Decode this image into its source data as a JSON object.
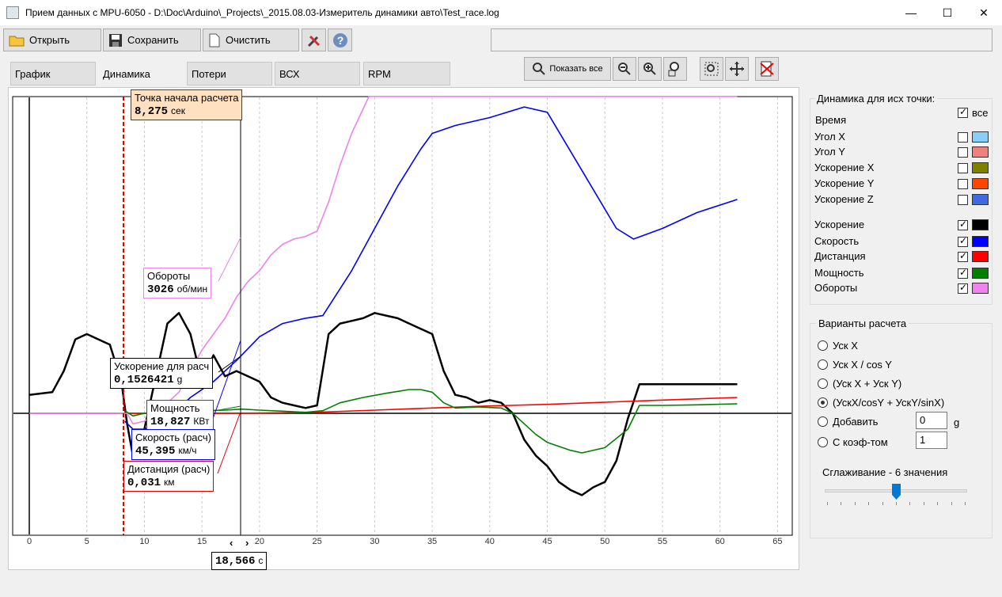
{
  "window": {
    "title": "Прием данных с MPU-6050 - D:\\Doc\\Arduino\\_Projects\\_2015.08.03-Измеритель динамики авто\\Test_race.log",
    "controls": [
      "minimize-icon",
      "maximize-icon",
      "close-icon"
    ]
  },
  "toolbar": {
    "open_label": "Открыть",
    "save_label": "Сохранить",
    "clear_label": "Очистить",
    "tools_icon": "tools-icon",
    "help_icon": "help-icon"
  },
  "tabs": [
    "График",
    "Динамика",
    "Потери",
    "ВСХ",
    "RPM"
  ],
  "active_tab": "Динамика",
  "zoom": {
    "show_all_label": "Показать все"
  },
  "plot": {
    "start_marker": {
      "title": "Точка начала расчета",
      "value": "8,275",
      "unit": "сек"
    },
    "cursor": {
      "value": "18,566",
      "unit": "с"
    },
    "labels": {
      "rpm": {
        "title": "Обороты",
        "value": "3026",
        "unit": "об/мин"
      },
      "accel": {
        "title": "Ускорение для расч",
        "value": "0,1526421",
        "unit": "g"
      },
      "power": {
        "title": "Мощность",
        "value": "18,827",
        "unit": "КВт"
      },
      "speed": {
        "title": "Скорость (расч)",
        "value": "45,395",
        "unit": "км/ч"
      },
      "distance": {
        "title": "Дистанция (расч)",
        "value": "0,031",
        "unit": "км"
      }
    },
    "x_ticks": [
      "0",
      "5",
      "10",
      "15",
      "20",
      "25",
      "30",
      "35",
      "40",
      "45",
      "50",
      "55",
      "60",
      "65"
    ]
  },
  "chart_data": {
    "type": "line",
    "title": "",
    "xlabel": "",
    "ylabel": "",
    "xlim": [
      -1.5,
      66
    ],
    "ylim": [
      -2,
      6
    ],
    "grid": true,
    "series": [
      {
        "name": "Ускорение",
        "color": "#000000",
        "x": [
          0,
          2,
          3,
          4,
          5,
          6,
          7,
          8,
          8.5,
          9,
          10,
          11,
          12,
          13,
          14,
          15,
          16,
          17,
          18,
          19,
          20,
          21,
          22,
          23,
          24,
          25,
          26,
          27,
          28,
          29,
          30,
          31,
          32,
          33,
          34,
          35,
          36,
          37,
          38,
          39,
          40,
          41,
          42,
          43,
          44,
          45,
          46,
          47,
          48,
          49,
          50,
          51,
          52,
          53,
          54,
          56,
          58,
          60,
          61.5
        ],
        "y": [
          0.35,
          0.4,
          0.8,
          1.4,
          1.5,
          1.4,
          1.3,
          0.6,
          -0.2,
          -0.8,
          -0.3,
          0.7,
          1.7,
          1.9,
          1.5,
          0.6,
          1.1,
          0.7,
          0.8,
          0.7,
          0.6,
          0.3,
          0.2,
          0.15,
          0.1,
          0.15,
          1.5,
          1.7,
          1.75,
          1.8,
          1.9,
          1.85,
          1.8,
          1.7,
          1.6,
          1.5,
          0.8,
          0.35,
          0.3,
          0.2,
          0.25,
          0.2,
          0.0,
          -0.5,
          -0.8,
          -1.0,
          -1.3,
          -1.45,
          -1.55,
          -1.4,
          -1.3,
          -0.9,
          -0.1,
          0.55,
          0.55,
          0.55,
          0.55,
          0.55,
          0.55
        ]
      },
      {
        "name": "Скорость",
        "color": "#0000ff",
        "x": [
          8.3,
          9,
          10,
          12,
          14,
          16,
          18,
          20,
          22,
          24,
          25.5,
          28,
          30,
          32,
          34,
          35,
          37,
          40,
          43,
          45,
          48,
          51,
          52.5,
          55,
          58,
          61.5
        ],
        "y": [
          -0.15,
          -0.3,
          -0.3,
          -0.1,
          0.3,
          0.6,
          1.0,
          1.45,
          1.7,
          1.8,
          1.85,
          2.7,
          3.5,
          4.3,
          5.0,
          5.3,
          5.45,
          5.6,
          5.8,
          5.7,
          4.6,
          3.5,
          3.3,
          3.5,
          3.8,
          4.05
        ]
      },
      {
        "name": "Дистанция",
        "color": "#ff0000",
        "x": [
          8.3,
          15,
          20,
          25,
          30,
          35,
          40,
          45,
          50,
          55,
          61.5
        ],
        "y": [
          0.0,
          0.0,
          0.005,
          0.02,
          0.06,
          0.1,
          0.14,
          0.17,
          0.21,
          0.25,
          0.3
        ]
      },
      {
        "name": "Мощность",
        "color": "#008000",
        "x": [
          8.3,
          9,
          10,
          11,
          13,
          15,
          17,
          18.5,
          20,
          22,
          24,
          25.5,
          27,
          29,
          31,
          33,
          34,
          35,
          36,
          37,
          39,
          41,
          42,
          43,
          44,
          45,
          47,
          48,
          50,
          52,
          53,
          55,
          58,
          61.5
        ],
        "y": [
          0.05,
          -0.05,
          0.0,
          0.02,
          0.04,
          0.05,
          0.06,
          0.08,
          0.06,
          0.04,
          0.02,
          0.05,
          0.2,
          0.3,
          0.38,
          0.45,
          0.45,
          0.4,
          0.2,
          0.1,
          0.12,
          0.1,
          0.0,
          -0.2,
          -0.4,
          -0.55,
          -0.7,
          -0.75,
          -0.65,
          -0.3,
          0.15,
          0.15,
          0.16,
          0.18
        ]
      },
      {
        "name": "Обороты",
        "color": "#ee82ee",
        "x": [
          0,
          7,
          8.5,
          9,
          10,
          11,
          12,
          13,
          14,
          15,
          16,
          17,
          18,
          19,
          20,
          21,
          22,
          23,
          24,
          25,
          26,
          27,
          28,
          29.5,
          61.5
        ],
        "y": [
          0.0,
          0.0,
          0.0,
          -0.2,
          -0.15,
          0.0,
          0.2,
          0.4,
          0.8,
          1.2,
          1.5,
          1.8,
          2.2,
          2.5,
          2.7,
          3.0,
          3.2,
          3.3,
          3.35,
          3.45,
          4.0,
          4.7,
          5.3,
          6.0,
          6.0
        ]
      }
    ]
  },
  "right_panel": {
    "group1_title": "Динамика для исх точки:",
    "all_label": "все",
    "time_label": "Время",
    "items": [
      {
        "label": "Угол X",
        "checked": false,
        "color": "#87cefa"
      },
      {
        "label": "Угол Y",
        "checked": false,
        "color": "#f08080"
      },
      {
        "label": "Ускорение X",
        "checked": false,
        "color": "#808000"
      },
      {
        "label": "Ускорение Y",
        "checked": false,
        "color": "#ff4500"
      },
      {
        "label": "Ускорение Z",
        "checked": false,
        "color": "#4169e1"
      },
      {
        "label": "Ускорение",
        "checked": true,
        "color": "#000000"
      },
      {
        "label": "Скорость",
        "checked": true,
        "color": "#0000ff"
      },
      {
        "label": "Дистанция",
        "checked": true,
        "color": "#ff0000"
      },
      {
        "label": "Мощность",
        "checked": true,
        "color": "#008000"
      },
      {
        "label": "Обороты",
        "checked": true,
        "color": "#ee82ee"
      }
    ],
    "group2_title": "Варианты расчета",
    "options": [
      "Уск X",
      "Уск X / cos Y",
      "(Уск X + Уск Y)",
      "(УскX/cosY + УскY/sinX)",
      "Добавить",
      "С коэф-том"
    ],
    "selected_option": 3,
    "add_value": "0",
    "add_unit": "g",
    "coef_value": "1",
    "smoothing_label": "Сглаживание - 6 значения",
    "smoothing_value": 6
  }
}
